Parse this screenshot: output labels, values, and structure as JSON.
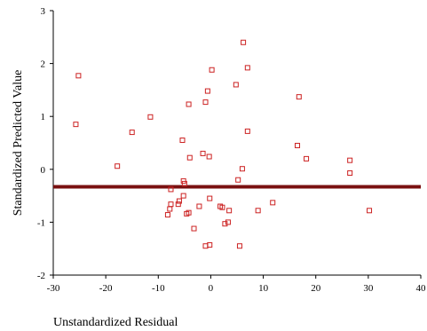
{
  "chart_data": {
    "type": "scatter",
    "xlabel": "Unstandardized Residual",
    "ylabel": "Standardized Predicted Value",
    "xlim": [
      -30,
      40
    ],
    "ylim": [
      -2,
      3
    ],
    "x_ticks": [
      -30,
      -20,
      -10,
      0,
      10,
      20,
      30,
      40
    ],
    "y_ticks": [
      3,
      2,
      1,
      0,
      -1,
      -2
    ],
    "grid": false,
    "marker": "hollow-square",
    "marker_color": "#cc2222",
    "points": [
      {
        "x": 6.2,
        "y": 2.4
      },
      {
        "x": -25.2,
        "y": 1.77
      },
      {
        "x": 0.2,
        "y": 1.88
      },
      {
        "x": 7.0,
        "y": 1.92
      },
      {
        "x": 4.8,
        "y": 1.6
      },
      {
        "x": -0.6,
        "y": 1.48
      },
      {
        "x": 16.8,
        "y": 1.37
      },
      {
        "x": -1.0,
        "y": 1.27
      },
      {
        "x": -4.2,
        "y": 1.23
      },
      {
        "x": -11.5,
        "y": 0.99
      },
      {
        "x": -25.7,
        "y": 0.85
      },
      {
        "x": -15.0,
        "y": 0.7
      },
      {
        "x": 7.0,
        "y": 0.72
      },
      {
        "x": -5.4,
        "y": 0.55
      },
      {
        "x": 16.5,
        "y": 0.45
      },
      {
        "x": -1.5,
        "y": 0.3
      },
      {
        "x": -0.3,
        "y": 0.24
      },
      {
        "x": -4.0,
        "y": 0.22
      },
      {
        "x": 18.2,
        "y": 0.2
      },
      {
        "x": 26.5,
        "y": 0.17
      },
      {
        "x": -17.8,
        "y": 0.06
      },
      {
        "x": 6.0,
        "y": 0.01
      },
      {
        "x": 26.5,
        "y": -0.07
      },
      {
        "x": 5.2,
        "y": -0.2
      },
      {
        "x": -5.2,
        "y": -0.22
      },
      {
        "x": -5.0,
        "y": -0.27
      },
      {
        "x": -7.6,
        "y": -0.38
      },
      {
        "x": -5.2,
        "y": -0.5
      },
      {
        "x": -0.2,
        "y": -0.55
      },
      {
        "x": -6.0,
        "y": -0.6
      },
      {
        "x": -7.6,
        "y": -0.66
      },
      {
        "x": 11.8,
        "y": -0.63
      },
      {
        "x": -6.2,
        "y": -0.66
      },
      {
        "x": -2.2,
        "y": -0.7
      },
      {
        "x": 1.8,
        "y": -0.7
      },
      {
        "x": 2.2,
        "y": -0.72
      },
      {
        "x": -7.8,
        "y": -0.75
      },
      {
        "x": 3.5,
        "y": -0.78
      },
      {
        "x": 9.0,
        "y": -0.78
      },
      {
        "x": 30.2,
        "y": -0.78
      },
      {
        "x": -4.2,
        "y": -0.82
      },
      {
        "x": -4.6,
        "y": -0.84
      },
      {
        "x": -8.2,
        "y": -0.86
      },
      {
        "x": 3.3,
        "y": -1.0
      },
      {
        "x": 2.7,
        "y": -1.03
      },
      {
        "x": -3.2,
        "y": -1.12
      },
      {
        "x": -0.2,
        "y": -1.43
      },
      {
        "x": -1.0,
        "y": -1.45
      },
      {
        "x": 5.5,
        "y": -1.45
      }
    ],
    "reference_line": {
      "y": -0.33,
      "color": "#7a1010"
    }
  }
}
